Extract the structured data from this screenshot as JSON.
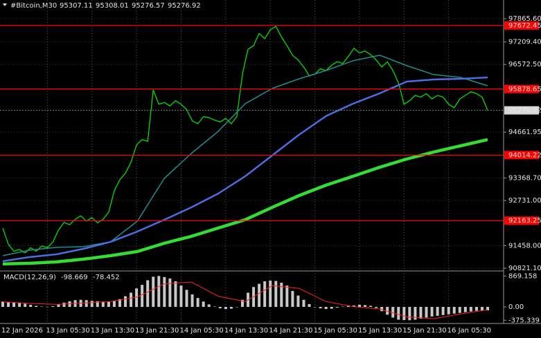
{
  "chart_data": [
    {
      "type": "line",
      "symbol": "#Bitcoin,M30",
      "ohlc": [
        95307.11,
        95308.01,
        95276.57,
        95276.92
      ],
      "ylim": [
        90782,
        98392
      ],
      "yticks": [
        {
          "value": 97865.6,
          "label": "97865.60"
        },
        {
          "value": 97209.4,
          "label": "97209.40"
        },
        {
          "value": 96572.5,
          "label": "96572.50"
        },
        94661.95,
        {
          "value": 93368.7,
          "label": "93368.70"
        },
        {
          "value": 92731,
          "label": "92731.00"
        },
        {
          "value": 91458,
          "label": "91458.00"
        },
        {
          "value": 90821.1,
          "label": "90821.10"
        }
      ],
      "last_price": 95276.92,
      "levels": [
        97672.45,
        95878.65,
        94014.22,
        92163.25
      ],
      "level_color": "#ff0000",
      "x_labels": [
        "12 Jan 2026",
        "13 Jan 05:30",
        "13 Jan 13:30",
        "13 Jan 21:30",
        "14 Jan 05:30",
        "14 Jan 13:30",
        "14 Jan 21:30",
        "15 Jan 05:30",
        "15 Jan 13:30",
        "15 Jan 21:30",
        "16 Jan 05:30"
      ],
      "grid": true,
      "series": [
        {
          "color": "#00e000",
          "width": 1.3,
          "values": [
            91950,
            91500,
            91300,
            91350,
            91250,
            91400,
            91300,
            91450,
            91400,
            91560,
            91900,
            92110,
            92050,
            92200,
            92300,
            92150,
            92250,
            92100,
            92200,
            92400,
            93000,
            93320,
            93500,
            93810,
            94300,
            94450,
            94400,
            95850,
            95450,
            95500,
            95400,
            95550,
            95450,
            95300,
            94980,
            94900,
            95100,
            95070,
            95000,
            94950,
            95050,
            94900,
            95100,
            96300,
            97000,
            97100,
            97450,
            97300,
            97550,
            97650,
            97350,
            97100,
            96830,
            96700,
            96500,
            96250,
            96300,
            96450,
            96400,
            96550,
            96650,
            96600,
            96800,
            97030,
            96900,
            96950,
            96850,
            96700,
            96500,
            96650,
            96400,
            96050,
            95450,
            95550,
            95700,
            95650,
            95750,
            95600,
            95700,
            95650,
            95450,
            95350,
            95600,
            95700,
            95800,
            95750,
            95650,
            95277
          ]
        },
        {
          "color": "#1f8f8f",
          "width": 1.5,
          "values": [
            91174,
            91330,
            91408,
            91427,
            91564,
            92150,
            93359,
            94061,
            94686,
            95466,
            95895,
            96168,
            96402,
            96676,
            96832,
            96539,
            96286,
            96207,
            95973
          ]
        },
        {
          "color": "#4a6fe0",
          "width": 2.5,
          "values": [
            91018,
            91135,
            91213,
            91369,
            91564,
            91857,
            92188,
            92539,
            92929,
            93417,
            94003,
            94588,
            95115,
            95466,
            95759,
            96090,
            96149,
            96168,
            96207
          ]
        },
        {
          "color": "#33dd33",
          "width": 4.5,
          "values": [
            90940,
            90959,
            90998,
            91076,
            91174,
            91291,
            91525,
            91720,
            91954,
            92188,
            92539,
            92871,
            93164,
            93417,
            93671,
            93905,
            94101,
            94276,
            94452
          ]
        }
      ]
    },
    {
      "type": "macd",
      "title": "MACD(12,26,9)",
      "macd": -98.669,
      "signal_value": -78.452,
      "ylim": [
        -389,
        934
      ],
      "yticks": [
        869.158,
        {
          "value": 0,
          "label": "0.00"
        },
        -375.339
      ],
      "histogram": {
        "color": "#c8c8c8",
        "values": [
          150,
          140,
          130,
          110,
          90,
          60,
          30,
          10,
          5,
          20,
          80,
          120,
          160,
          190,
          200,
          190,
          170,
          160,
          150,
          150,
          170,
          220,
          300,
          400,
          520,
          620,
          750,
          850,
          870,
          840,
          800,
          720,
          600,
          480,
          350,
          250,
          150,
          70,
          10,
          -40,
          -60,
          -50,
          0,
          200,
          400,
          560,
          650,
          720,
          740,
          730,
          680,
          600,
          450,
          320,
          200,
          80,
          -10,
          -40,
          -60,
          -50,
          -20,
          10,
          30,
          40,
          60,
          50,
          30,
          -30,
          -120,
          -220,
          -300,
          -360,
          -370,
          -375,
          -360,
          -330,
          -300,
          -270,
          -250,
          -230,
          -210,
          -190,
          -170,
          -150,
          -130,
          -110,
          -100,
          -99
        ]
      },
      "signal": {
        "color": "#ff2020",
        "values": [
          140,
          100,
          70,
          110,
          150,
          280,
          650,
          700,
          300,
          150,
          600,
          520,
          150,
          10,
          -60,
          -280,
          -330,
          -200,
          -78
        ]
      }
    }
  ]
}
